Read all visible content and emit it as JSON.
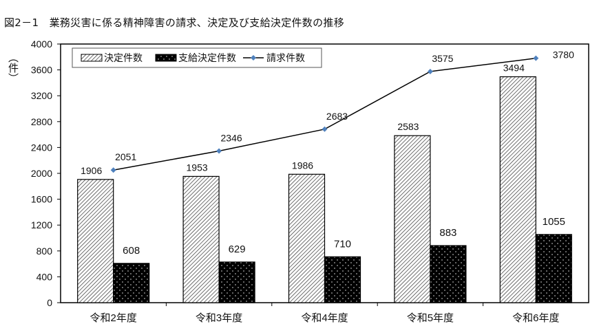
{
  "chart_data": {
    "type": "bar",
    "title": "図2－1　業務災害に係る精神障害の請求、決定及び支給決定件数の推移",
    "ylabel": "（件）",
    "xlabel": "",
    "categories": [
      "令和2年度",
      "令和3年度",
      "令和4年度",
      "令和5年度",
      "令和6年度"
    ],
    "ylim": [
      0,
      4000
    ],
    "yticks": [
      0,
      400,
      800,
      1200,
      1600,
      2000,
      2400,
      2800,
      3200,
      3600,
      4000
    ],
    "grid": false,
    "legend_position": "top-left",
    "series": [
      {
        "name": "決定件数",
        "kind": "bar",
        "pattern": "diagonal-hatch",
        "values": [
          1906,
          1953,
          1986,
          2583,
          3494
        ]
      },
      {
        "name": "支給決定件数",
        "kind": "bar",
        "pattern": "black-dotted",
        "values": [
          608,
          629,
          710,
          883,
          1055
        ]
      },
      {
        "name": "請求件数",
        "kind": "line",
        "color": "#4f81bd",
        "values": [
          2051,
          2346,
          2683,
          3575,
          3780
        ]
      }
    ]
  }
}
